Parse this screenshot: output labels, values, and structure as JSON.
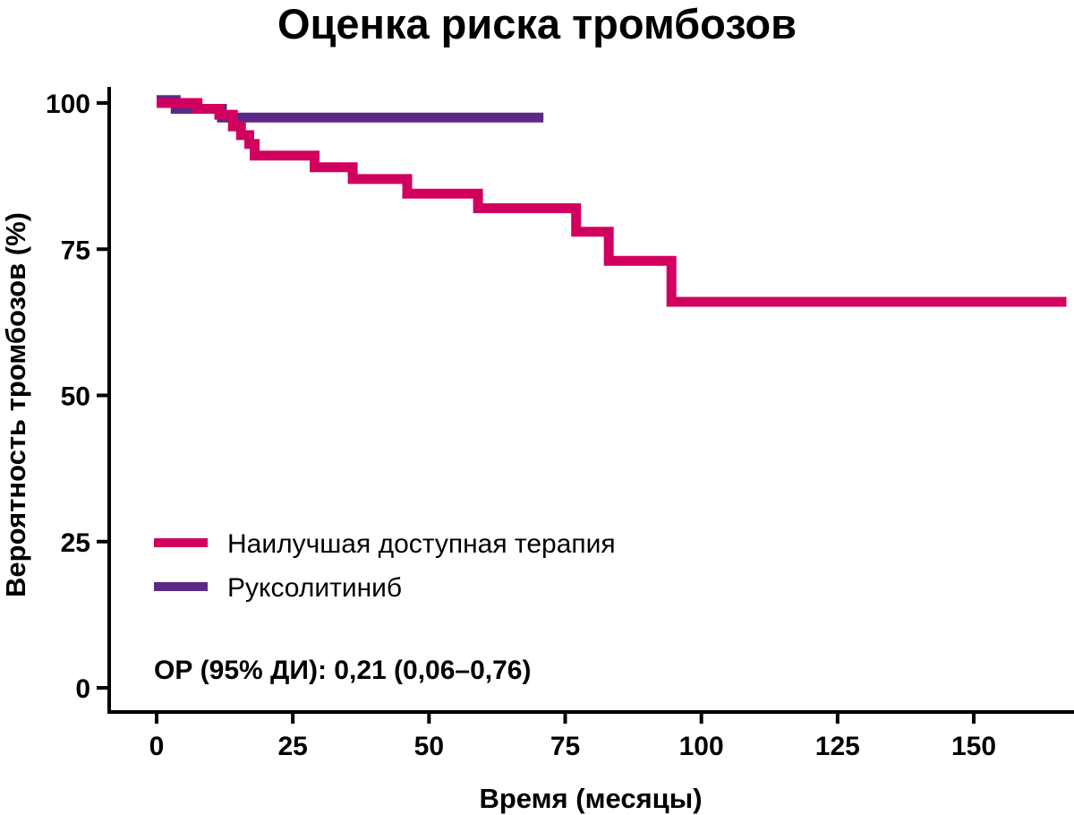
{
  "chart_data": {
    "type": "line",
    "title": "Оценка риска тромбозов",
    "xlabel": "Время (месяцы)",
    "ylabel": "Вероятность тромбозов (%)",
    "xlim": [
      -8,
      168
    ],
    "ylim": [
      -4,
      102
    ],
    "x_ticks": [
      0,
      25,
      50,
      75,
      100,
      125,
      150
    ],
    "x_tick_labels": [
      "0",
      "25",
      "50",
      "75",
      "100",
      "125",
      "150"
    ],
    "y_ticks": [
      0,
      25,
      50,
      75,
      100
    ],
    "y_tick_labels": [
      "0",
      "25",
      "50",
      "75",
      "100"
    ],
    "grid": false,
    "legend_position": "bottom-left",
    "annotation": "ОР (95% ДИ): 0,21 (0,06–0,76)",
    "series": [
      {
        "name": "Наилучшая доступная терапия",
        "color": "#D1005E",
        "step": true,
        "points": [
          [
            0,
            100
          ],
          [
            7.5,
            100
          ],
          [
            7.5,
            99
          ],
          [
            11.5,
            99
          ],
          [
            11.5,
            98
          ],
          [
            14,
            98
          ],
          [
            14,
            96
          ],
          [
            15.5,
            96
          ],
          [
            15.5,
            94.5
          ],
          [
            17,
            94.5
          ],
          [
            17,
            93
          ],
          [
            18,
            93
          ],
          [
            18,
            91
          ],
          [
            29,
            91
          ],
          [
            29,
            89
          ],
          [
            36,
            89
          ],
          [
            36,
            87
          ],
          [
            46,
            87
          ],
          [
            46,
            84.5
          ],
          [
            59,
            84.5
          ],
          [
            59,
            82
          ],
          [
            77,
            82
          ],
          [
            77,
            78
          ],
          [
            83,
            78
          ],
          [
            83,
            73
          ],
          [
            94.5,
            73
          ],
          [
            94.5,
            66
          ],
          [
            167,
            66
          ]
        ]
      },
      {
        "name": "Руксолитиниб",
        "color": "#5B2A86",
        "step": true,
        "points": [
          [
            0,
            100.5
          ],
          [
            3.5,
            100.5
          ],
          [
            3.5,
            99
          ],
          [
            12,
            99
          ],
          [
            12,
            97.5
          ],
          [
            71,
            97.5
          ]
        ]
      }
    ]
  }
}
